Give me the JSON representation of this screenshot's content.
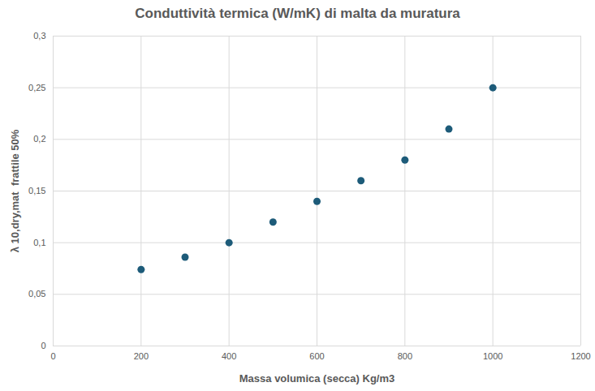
{
  "chart_data": {
    "type": "scatter",
    "title": "Conduttività termica (W/mK) di malta da muratura",
    "x_label": "Massa volumica (secca) Kg/m3",
    "y_label": "λ 10,dry,mat  frattile 50%",
    "x": [
      200,
      300,
      400,
      500,
      600,
      700,
      800,
      900,
      1000
    ],
    "values": [
      0.074,
      0.086,
      0.1,
      0.12,
      0.14,
      0.16,
      0.18,
      0.21,
      0.25
    ],
    "color": "#1d5b79",
    "marker": "circle",
    "xlim": [
      0,
      1200
    ],
    "xticks": [
      0,
      200,
      400,
      600,
      800,
      1000,
      1200
    ],
    "ylim": [
      0,
      0.3
    ],
    "yticks": [
      0,
      {
        "value": 0.05,
        "label": "0,05"
      },
      {
        "value": 0.1,
        "label": "0,1"
      },
      {
        "value": 0.15,
        "label": "0,15"
      },
      {
        "value": 0.2,
        "label": "0,2"
      },
      {
        "value": 0.25,
        "label": "0,25"
      },
      {
        "value": 0.3,
        "label": "0,3"
      }
    ],
    "grid": true
  }
}
